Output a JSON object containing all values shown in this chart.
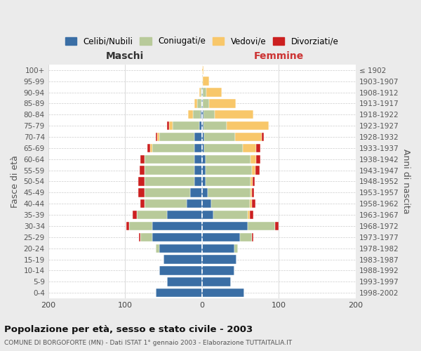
{
  "age_groups": [
    "0-4",
    "5-9",
    "10-14",
    "15-19",
    "20-24",
    "25-29",
    "30-34",
    "35-39",
    "40-44",
    "45-49",
    "50-54",
    "55-59",
    "60-64",
    "65-69",
    "70-74",
    "75-79",
    "80-84",
    "85-89",
    "90-94",
    "95-99",
    "100+"
  ],
  "birth_years": [
    "1998-2002",
    "1993-1997",
    "1988-1992",
    "1983-1987",
    "1978-1982",
    "1973-1977",
    "1968-1972",
    "1963-1967",
    "1958-1962",
    "1953-1957",
    "1948-1952",
    "1943-1947",
    "1938-1942",
    "1933-1937",
    "1928-1932",
    "1923-1927",
    "1918-1922",
    "1913-1917",
    "1908-1912",
    "1903-1907",
    "≤ 1902"
  ],
  "maschi_celibi": [
    60,
    45,
    55,
    50,
    55,
    65,
    65,
    45,
    20,
    15,
    10,
    10,
    10,
    10,
    10,
    3,
    2,
    1,
    0,
    0,
    0
  ],
  "maschi_coniugati": [
    0,
    0,
    0,
    0,
    5,
    15,
    30,
    40,
    55,
    60,
    65,
    65,
    65,
    55,
    45,
    35,
    10,
    5,
    2,
    0,
    0
  ],
  "maschi_vedovi": [
    0,
    0,
    0,
    0,
    0,
    0,
    0,
    0,
    0,
    0,
    0,
    0,
    0,
    2,
    3,
    5,
    6,
    4,
    1,
    0,
    0
  ],
  "maschi_divorziati": [
    0,
    0,
    0,
    0,
    0,
    2,
    3,
    5,
    5,
    8,
    8,
    6,
    5,
    4,
    2,
    2,
    0,
    0,
    0,
    0,
    0
  ],
  "femmine_nubili": [
    55,
    38,
    42,
    45,
    42,
    50,
    60,
    15,
    12,
    8,
    5,
    5,
    5,
    3,
    3,
    2,
    2,
    1,
    1,
    0,
    0
  ],
  "femmine_coniugate": [
    0,
    0,
    0,
    0,
    5,
    15,
    35,
    45,
    50,
    55,
    58,
    60,
    58,
    50,
    40,
    30,
    15,
    8,
    5,
    1,
    0
  ],
  "femmine_vedove": [
    0,
    0,
    0,
    0,
    0,
    0,
    0,
    2,
    3,
    2,
    3,
    5,
    8,
    18,
    35,
    55,
    50,
    35,
    20,
    8,
    2
  ],
  "femmine_divorziate": [
    0,
    0,
    0,
    0,
    0,
    2,
    5,
    5,
    5,
    3,
    3,
    5,
    5,
    5,
    3,
    0,
    0,
    0,
    0,
    0,
    0
  ],
  "colors": {
    "celibi": "#3a6ea5",
    "coniugati": "#b8ca9a",
    "vedovi": "#f8c76a",
    "divorziati": "#cc2020"
  },
  "legend_labels": [
    "Celibi/Nubili",
    "Coniugati/e",
    "Vedovi/e",
    "Divorziati/e"
  ],
  "title": "Popolazione per età, sesso e stato civile - 2003",
  "subtitle": "COMUNE DI BORGOFORTE (MN) - Dati ISTAT 1° gennaio 2003 - Elaborazione TUTTAITALIA.IT",
  "label_maschi": "Maschi",
  "label_femmine": "Femmine",
  "ylabel_left": "Fasce di età",
  "ylabel_right": "Anni di nascita",
  "xlim": 200,
  "bg_color": "#ebebeb",
  "plot_bg": "#ffffff"
}
